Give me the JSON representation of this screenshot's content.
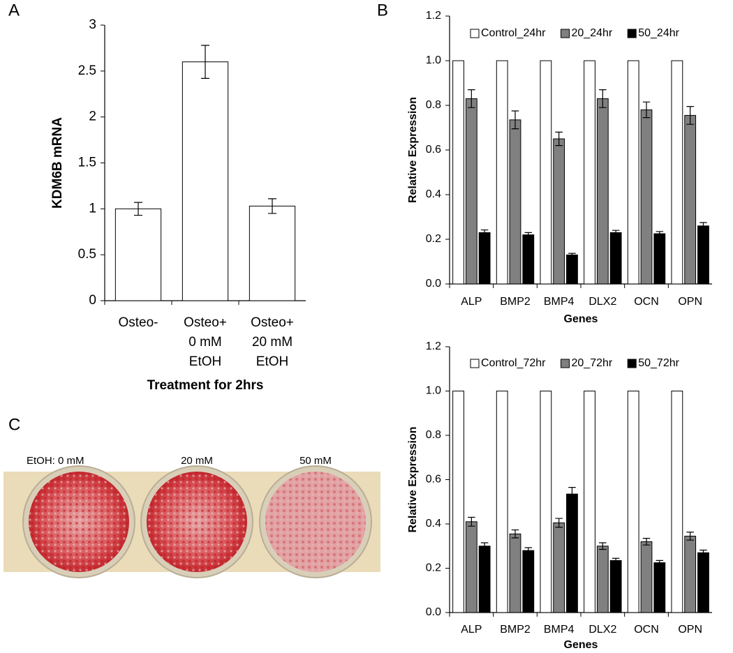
{
  "chart_data": [
    {
      "type": "bar",
      "panel_label": "A",
      "y_label": "KDM6B mRNA",
      "x_label": "Treatment for 2hrs",
      "categories": [
        [
          "Osteo-"
        ],
        [
          "Osteo+",
          "0 mM",
          "EtOH"
        ],
        [
          "Osteo+",
          "20 mM",
          "EtOH"
        ]
      ],
      "series": [
        {
          "color": "#ffffff",
          "values": [
            1.0,
            2.6,
            1.03
          ],
          "errors": [
            0.07,
            0.18,
            0.08
          ]
        }
      ],
      "ylim": [
        0,
        3
      ],
      "yticks": [
        0,
        0.5,
        1,
        1.5,
        2,
        2.5,
        3
      ],
      "grid": false
    },
    {
      "type": "bar",
      "panel_label": "B",
      "y_label": "Relative Expression",
      "x_label": "Genes",
      "categories": [
        "ALP",
        "BMP2",
        "BMP4",
        "DLX2",
        "OCN",
        "OPN"
      ],
      "series": [
        {
          "name": "Control_24hr",
          "color": "#ffffff",
          "values": [
            1.0,
            1.0,
            1.0,
            1.0,
            1.0,
            1.0
          ]
        },
        {
          "name": "20_24hr",
          "color": "#808080",
          "values": [
            0.83,
            0.735,
            0.65,
            0.83,
            0.78,
            0.755
          ],
          "errors": [
            0.04,
            0.04,
            0.03,
            0.04,
            0.035,
            0.04
          ]
        },
        {
          "name": "50_24hr",
          "color": "#000000",
          "values": [
            0.23,
            0.22,
            0.13,
            0.23,
            0.225,
            0.26
          ],
          "errors": [
            0.012,
            0.01,
            0.007,
            0.01,
            0.01,
            0.015
          ]
        }
      ],
      "ylim": [
        0,
        1.2
      ],
      "yticks": [
        {
          "value": 0,
          "label": "0.0"
        },
        0.2,
        0.4,
        0.6,
        0.8,
        {
          "value": 1,
          "label": "1.0"
        },
        1.2
      ],
      "grid": false,
      "legend": "top"
    },
    {
      "type": "bar",
      "y_label": "Relative Expression",
      "x_label": "Genes",
      "categories": [
        "ALP",
        "BMP2",
        "BMP4",
        "DLX2",
        "OCN",
        "OPN"
      ],
      "series": [
        {
          "name": "Control_72hr",
          "color": "#ffffff",
          "values": [
            1.0,
            1.0,
            1.0,
            1.0,
            1.0,
            1.0
          ]
        },
        {
          "name": "20_72hr",
          "color": "#808080",
          "values": [
            0.41,
            0.355,
            0.405,
            0.3,
            0.32,
            0.345
          ],
          "errors": [
            0.02,
            0.018,
            0.02,
            0.015,
            0.015,
            0.018
          ]
        },
        {
          "name": "50_72hr",
          "color": "#000000",
          "values": [
            0.3,
            0.28,
            0.535,
            0.235,
            0.225,
            0.27
          ],
          "errors": [
            0.015,
            0.013,
            0.03,
            0.01,
            0.01,
            0.012
          ]
        }
      ],
      "ylim": [
        0,
        1.2
      ],
      "yticks": [
        {
          "value": 0,
          "label": "0.0"
        },
        0.2,
        0.4,
        0.6,
        0.8,
        {
          "value": 1,
          "label": "1.0"
        },
        1.2
      ],
      "grid": false,
      "legend": "top"
    }
  ],
  "panel_c": {
    "label": "C",
    "wells": [
      "EtOH: 0 mM",
      "20 mM",
      "50 mM"
    ]
  }
}
